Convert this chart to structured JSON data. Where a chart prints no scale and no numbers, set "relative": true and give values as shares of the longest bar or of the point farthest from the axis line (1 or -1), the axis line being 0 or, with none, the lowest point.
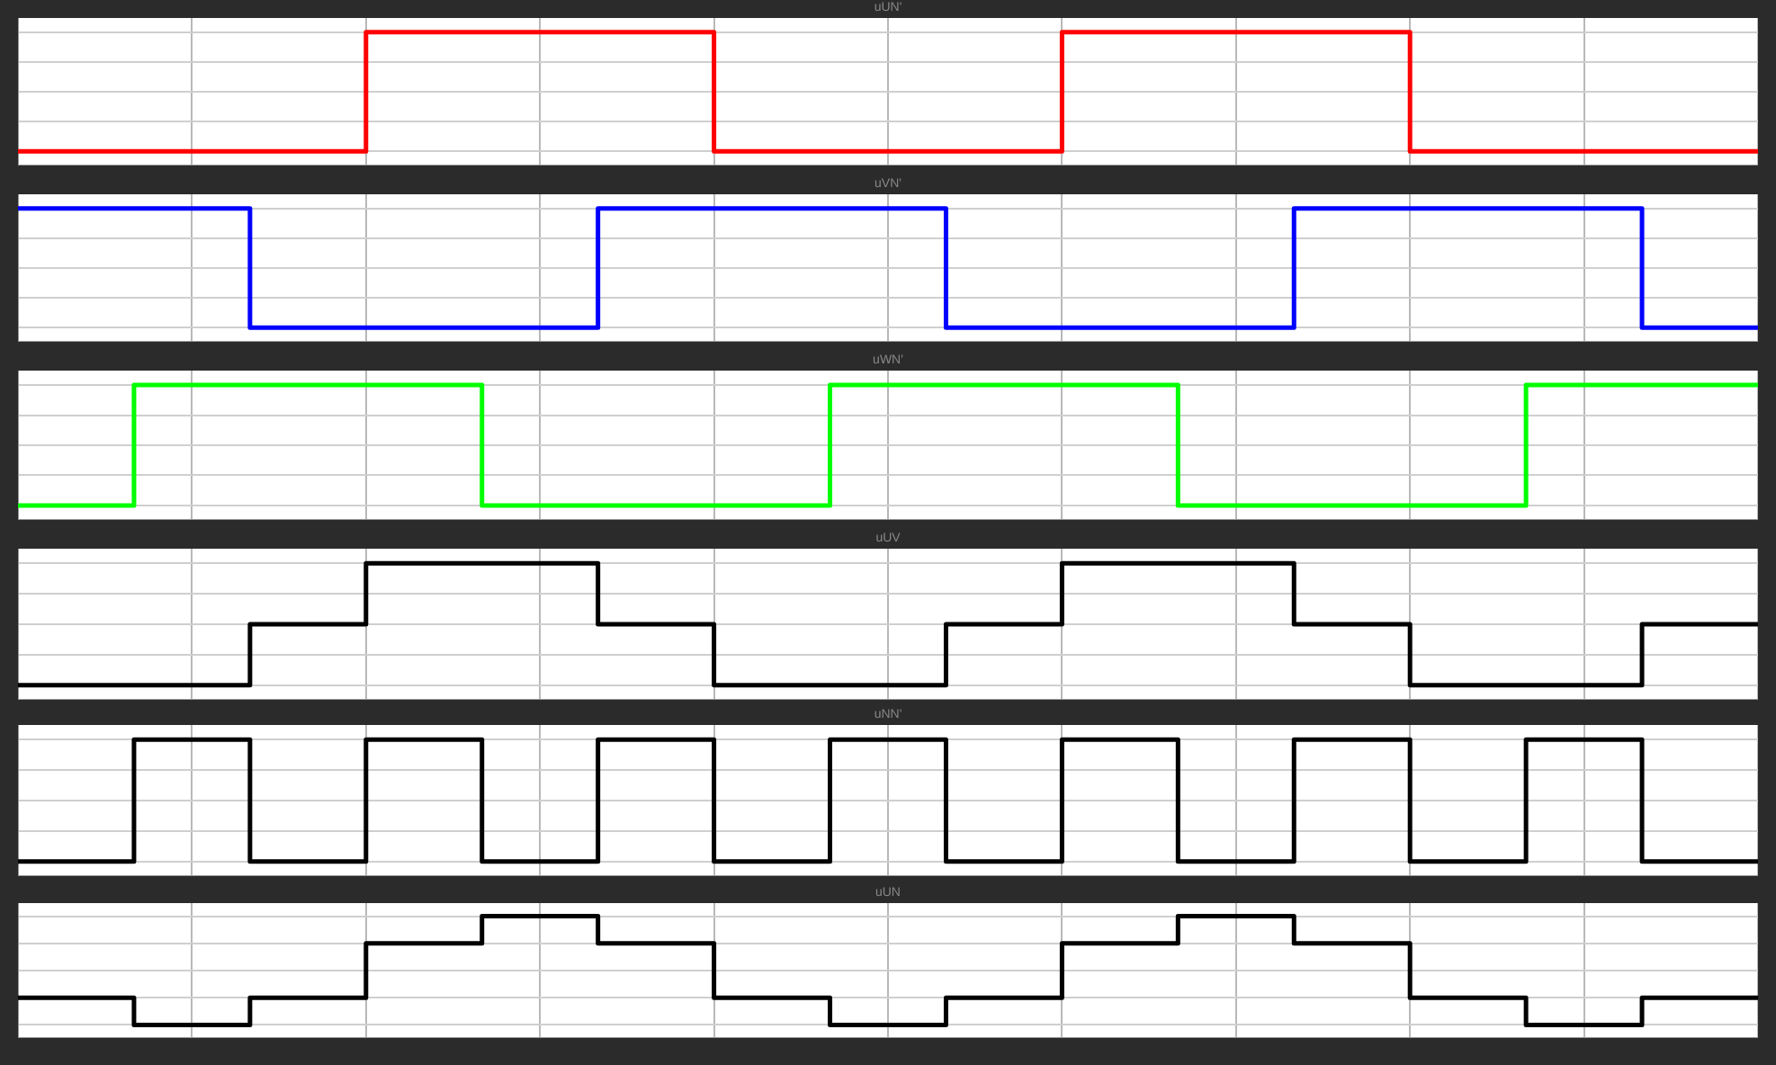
{
  "chart_data": [
    {
      "type": "step",
      "title": "uUN'",
      "relative": true,
      "grid": true,
      "legend": false,
      "categories": [
        null,
        null,
        null,
        null,
        null,
        null,
        null,
        null,
        null,
        null,
        null,
        null,
        null,
        null,
        null,
        null,
        null,
        null,
        null,
        null,
        null,
        null,
        null,
        null,
        null,
        null,
        null,
        null,
        null,
        null,
        null
      ],
      "series": [
        {
          "color": "#ff0000",
          "values": [
            0,
            0,
            0,
            0,
            0,
            0,
            1,
            1,
            1,
            1,
            1,
            1,
            0,
            0,
            0,
            0,
            0,
            0,
            1,
            1,
            1,
            1,
            1,
            1,
            0,
            0,
            0,
            0,
            0,
            0,
            0
          ]
        }
      ]
    },
    {
      "type": "step",
      "title": "uVN'",
      "relative": true,
      "grid": true,
      "legend": false,
      "categories": [
        null,
        null,
        null,
        null,
        null,
        null,
        null,
        null,
        null,
        null,
        null,
        null,
        null,
        null,
        null,
        null,
        null,
        null,
        null,
        null,
        null,
        null,
        null,
        null,
        null,
        null,
        null,
        null,
        null,
        null,
        null
      ],
      "series": [
        {
          "color": "#0000ff",
          "values": [
            1,
            1,
            1,
            1,
            0,
            0,
            0,
            0,
            0,
            0,
            1,
            1,
            1,
            1,
            1,
            1,
            0,
            0,
            0,
            0,
            0,
            0,
            1,
            1,
            1,
            1,
            1,
            1,
            0,
            0,
            0
          ]
        }
      ]
    },
    {
      "type": "step",
      "title": "uWN'",
      "relative": true,
      "grid": true,
      "legend": false,
      "categories": [
        null,
        null,
        null,
        null,
        null,
        null,
        null,
        null,
        null,
        null,
        null,
        null,
        null,
        null,
        null,
        null,
        null,
        null,
        null,
        null,
        null,
        null,
        null,
        null,
        null,
        null,
        null,
        null,
        null,
        null,
        null
      ],
      "series": [
        {
          "color": "#00ff00",
          "values": [
            0,
            0,
            1,
            1,
            1,
            1,
            1,
            1,
            0,
            0,
            0,
            0,
            0,
            0,
            1,
            1,
            1,
            1,
            1,
            1,
            0,
            0,
            0,
            0,
            0,
            0,
            1,
            1,
            1,
            1,
            1
          ]
        }
      ]
    },
    {
      "type": "step",
      "title": "uUV",
      "relative": true,
      "grid": true,
      "legend": false,
      "categories": [
        null,
        null,
        null,
        null,
        null,
        null,
        null,
        null,
        null,
        null,
        null,
        null,
        null,
        null,
        null,
        null,
        null,
        null,
        null,
        null,
        null,
        null,
        null,
        null,
        null,
        null,
        null,
        null,
        null,
        null,
        null
      ],
      "series": [
        {
          "color": "#000000",
          "values": [
            0,
            0,
            0,
            0,
            0.5,
            0.5,
            1,
            1,
            1,
            1,
            0.5,
            0.5,
            0,
            0,
            0,
            0,
            0.5,
            0.5,
            1,
            1,
            1,
            1,
            0.5,
            0.5,
            0,
            0,
            0,
            0,
            0.5,
            0.5,
            0.5
          ]
        }
      ]
    },
    {
      "type": "step",
      "title": "uNN'",
      "relative": true,
      "grid": true,
      "legend": false,
      "categories": [
        null,
        null,
        null,
        null,
        null,
        null,
        null,
        null,
        null,
        null,
        null,
        null,
        null,
        null,
        null,
        null,
        null,
        null,
        null,
        null,
        null,
        null,
        null,
        null,
        null,
        null,
        null,
        null,
        null,
        null,
        null
      ],
      "series": [
        {
          "color": "#000000",
          "values": [
            0,
            0,
            1,
            1,
            0,
            0,
            1,
            1,
            0,
            0,
            1,
            1,
            0,
            0,
            1,
            1,
            0,
            0,
            1,
            1,
            0,
            0,
            1,
            1,
            0,
            0,
            1,
            1,
            0,
            0,
            0
          ]
        }
      ]
    },
    {
      "type": "step",
      "title": "uUN",
      "relative": true,
      "grid": true,
      "legend": false,
      "categories": [
        null,
        null,
        null,
        null,
        null,
        null,
        null,
        null,
        null,
        null,
        null,
        null,
        null,
        null,
        null,
        null,
        null,
        null,
        null,
        null,
        null,
        null,
        null,
        null,
        null,
        null,
        null,
        null,
        null,
        null,
        null
      ],
      "series": [
        {
          "color": "#000000",
          "values": [
            0.25,
            0.25,
            0,
            0,
            0.25,
            0.25,
            0.75,
            0.75,
            1,
            1,
            0.75,
            0.75,
            0.25,
            0.25,
            0,
            0,
            0.25,
            0.25,
            0.75,
            0.75,
            1,
            1,
            0.75,
            0.75,
            0.25,
            0.25,
            0,
            0,
            0.25,
            0.25,
            0.25
          ]
        }
      ]
    }
  ]
}
